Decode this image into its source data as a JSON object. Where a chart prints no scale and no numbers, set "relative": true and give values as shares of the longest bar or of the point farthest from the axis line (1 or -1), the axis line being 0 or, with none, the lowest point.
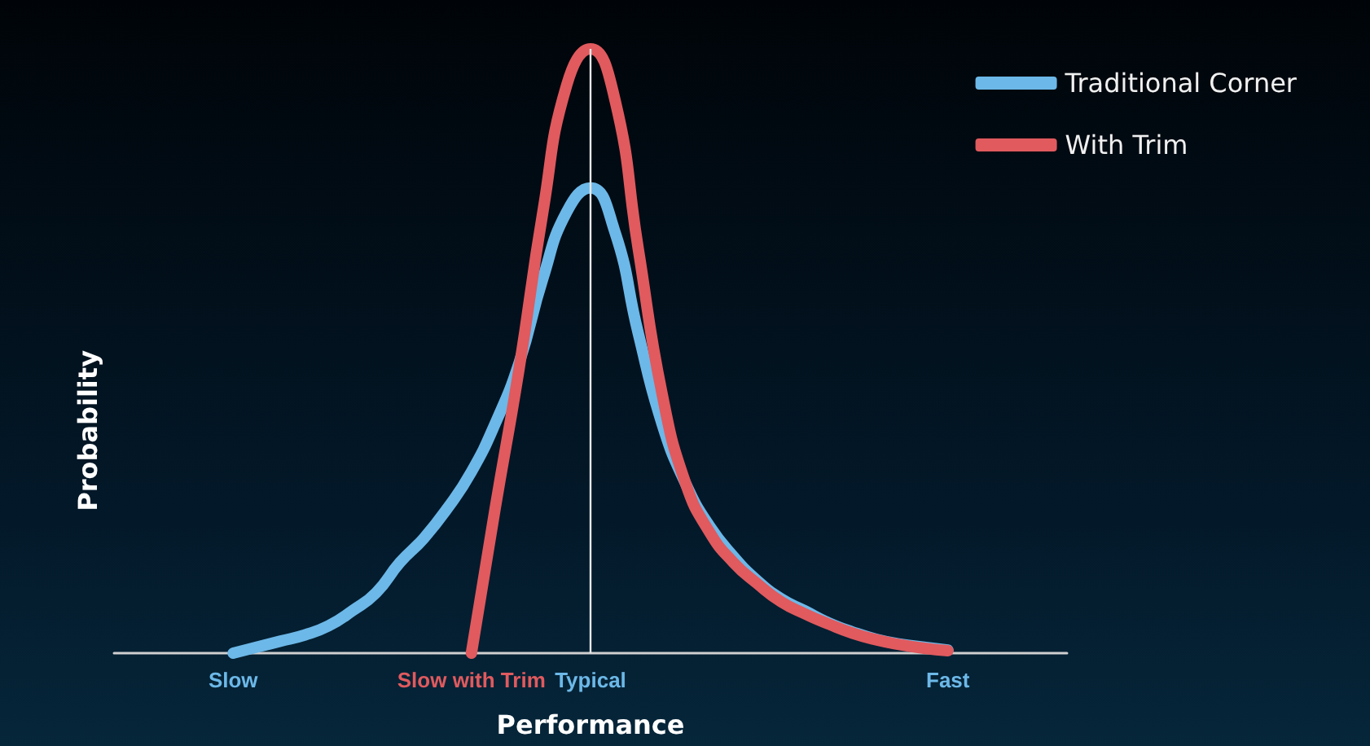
{
  "chart_data": {
    "type": "line",
    "relative": true,
    "xlabel": "Performance",
    "ylabel": "Probability",
    "legend": "top right",
    "grid": false,
    "marker": "none",
    "line_style": "solid",
    "categories": [
      null,
      null,
      null,
      null,
      null,
      "Slow",
      null,
      null,
      null,
      null,
      null,
      null,
      null,
      null,
      null,
      "Slow with Trim",
      null,
      null,
      null,
      null,
      "Typical",
      null,
      null,
      null,
      null,
      null,
      null,
      null,
      null,
      null,
      null,
      null,
      null,
      null,
      null,
      "Fast",
      null,
      null,
      null,
      null,
      null
    ],
    "series": [
      {
        "name": "Traditional Corner",
        "color": "#6cb8e8",
        "values": [
          null,
          null,
          null,
          null,
          null,
          0.0,
          0.01,
          0.02,
          0.03,
          0.045,
          0.07,
          0.1,
          0.15,
          0.19,
          0.24,
          0.3,
          0.38,
          0.48,
          0.62,
          0.73,
          0.77,
          0.7,
          0.53,
          0.38,
          0.28,
          0.21,
          0.16,
          0.12,
          0.09,
          0.07,
          0.05,
          0.035,
          0.023,
          0.015,
          0.01,
          0.005,
          null,
          null,
          null,
          null,
          null
        ]
      },
      {
        "name": "With Trim",
        "color": "#e05a5e",
        "values": [
          null,
          null,
          null,
          null,
          null,
          null,
          null,
          null,
          null,
          null,
          null,
          null,
          null,
          null,
          null,
          0.0,
          0.24,
          0.47,
          0.73,
          0.94,
          1.0,
          0.92,
          0.67,
          0.43,
          0.28,
          0.2,
          0.15,
          0.115,
          0.085,
          0.065,
          0.048,
          0.033,
          0.022,
          0.014,
          0.008,
          0.004,
          null,
          null,
          null,
          null,
          null
        ]
      }
    ],
    "ref_lines": [
      {
        "axis": "x",
        "value": "Typical",
        "color": "#e8e8e8"
      }
    ]
  }
}
